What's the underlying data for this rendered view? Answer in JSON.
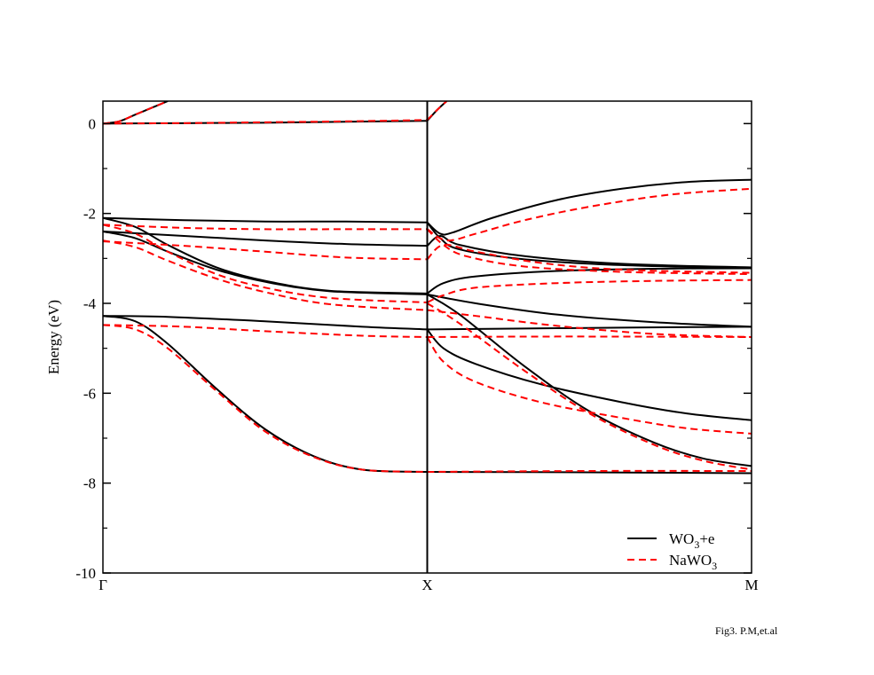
{
  "chart_data": {
    "type": "line",
    "title": "",
    "xlabel": "",
    "ylabel": "Energy (eV)",
    "ylim": [
      -10,
      0.5
    ],
    "xlim": [
      0,
      2
    ],
    "grid": false,
    "legend_position": "bottom-right",
    "x_tick_labels": [
      {
        "x": 0,
        "label": "Γ"
      },
      {
        "x": 1,
        "label": "X"
      },
      {
        "x": 2,
        "label": "M"
      }
    ],
    "y_ticks": [
      0,
      -2,
      -4,
      -6,
      -8,
      -10
    ],
    "y_tick_labels": [
      "0",
      "-2",
      "-4",
      "-6",
      "-8",
      "-10"
    ],
    "y_minor_ticks": [
      -1,
      -3,
      -5,
      -7,
      -9
    ],
    "vertical_line_at": 1,
    "colors": {
      "wo3e": "#000000",
      "nawo3": "#ff0000"
    },
    "series": [
      {
        "name": "WO3+e",
        "legend_main": "WO",
        "legend_sub": "3",
        "legend_tail": "+e",
        "style": "solid",
        "color": "#000000",
        "bands": [
          [
            [
              0,
              0
            ],
            [
              0.05,
              0.05
            ],
            [
              0.1,
              0.2
            ],
            [
              0.15,
              0.35
            ],
            [
              0.2,
              0.5
            ]
          ],
          [
            [
              0,
              0
            ],
            [
              0.25,
              0.01
            ],
            [
              0.5,
              0.02
            ],
            [
              0.75,
              0.04
            ],
            [
              1,
              0.06
            ]
          ],
          [
            [
              1,
              0.06
            ],
            [
              1.03,
              0.3
            ],
            [
              1.06,
              0.5
            ]
          ],
          [
            [
              0,
              -2.1
            ],
            [
              0.25,
              -2.15
            ],
            [
              0.5,
              -2.18
            ],
            [
              0.75,
              -2.18
            ],
            [
              1,
              -2.2
            ]
          ],
          [
            [
              0,
              -2.1
            ],
            [
              0.1,
              -2.3
            ],
            [
              0.2,
              -2.7
            ],
            [
              0.35,
              -3.2
            ],
            [
              0.5,
              -3.5
            ],
            [
              0.7,
              -3.72
            ],
            [
              1,
              -3.78
            ]
          ],
          [
            [
              0,
              -2.4
            ],
            [
              0.1,
              -2.55
            ],
            [
              0.2,
              -2.85
            ],
            [
              0.35,
              -3.25
            ],
            [
              0.5,
              -3.52
            ],
            [
              0.7,
              -3.73
            ],
            [
              1,
              -3.8
            ]
          ],
          [
            [
              0,
              -2.4
            ],
            [
              0.25,
              -2.5
            ],
            [
              0.5,
              -2.6
            ],
            [
              0.75,
              -2.68
            ],
            [
              1,
              -2.72
            ]
          ],
          [
            [
              0,
              -4.28
            ],
            [
              0.2,
              -4.3
            ],
            [
              0.5,
              -4.4
            ],
            [
              0.8,
              -4.52
            ],
            [
              1,
              -4.58
            ]
          ],
          [
            [
              0,
              -4.28
            ],
            [
              0.1,
              -4.4
            ],
            [
              0.2,
              -4.9
            ],
            [
              0.35,
              -5.9
            ],
            [
              0.5,
              -6.8
            ],
            [
              0.65,
              -7.4
            ],
            [
              0.8,
              -7.7
            ],
            [
              1,
              -7.75
            ]
          ],
          [
            [
              1,
              -2.2
            ],
            [
              1.04,
              -2.45
            ],
            [
              1.08,
              -2.42
            ],
            [
              1.2,
              -2.1
            ],
            [
              1.4,
              -1.7
            ],
            [
              1.6,
              -1.45
            ],
            [
              1.8,
              -1.3
            ],
            [
              2,
              -1.25
            ]
          ],
          [
            [
              1,
              -2.72
            ],
            [
              1.04,
              -2.5
            ],
            [
              1.1,
              -2.7
            ],
            [
              1.3,
              -2.95
            ],
            [
              1.6,
              -3.12
            ],
            [
              2,
              -3.2
            ]
          ],
          [
            [
              1,
              -2.2
            ],
            [
              1.04,
              -2.55
            ],
            [
              1.1,
              -2.8
            ],
            [
              1.3,
              -3.02
            ],
            [
              1.6,
              -3.15
            ],
            [
              2,
              -3.22
            ]
          ],
          [
            [
              1,
              -3.78
            ],
            [
              1.05,
              -3.55
            ],
            [
              1.15,
              -3.4
            ],
            [
              1.4,
              -3.28
            ],
            [
              1.7,
              -3.23
            ],
            [
              2,
              -3.22
            ]
          ],
          [
            [
              1,
              -3.8
            ],
            [
              1.15,
              -4.0
            ],
            [
              1.4,
              -4.25
            ],
            [
              1.7,
              -4.42
            ],
            [
              2,
              -4.52
            ]
          ],
          [
            [
              1,
              -4.58
            ],
            [
              1.3,
              -4.56
            ],
            [
              1.6,
              -4.54
            ],
            [
              2,
              -4.52
            ]
          ],
          [
            [
              1,
              -4.58
            ],
            [
              1.05,
              -5.0
            ],
            [
              1.15,
              -5.35
            ],
            [
              1.35,
              -5.8
            ],
            [
              1.6,
              -6.2
            ],
            [
              1.8,
              -6.45
            ],
            [
              2,
              -6.6
            ]
          ],
          [
            [
              1,
              -3.8
            ],
            [
              1.1,
              -4.25
            ],
            [
              1.3,
              -5.4
            ],
            [
              1.5,
              -6.4
            ],
            [
              1.7,
              -7.1
            ],
            [
              1.85,
              -7.45
            ],
            [
              2,
              -7.62
            ]
          ],
          [
            [
              1,
              -7.75
            ],
            [
              1.5,
              -7.76
            ],
            [
              2,
              -7.78
            ]
          ]
        ]
      },
      {
        "name": "NaWO3",
        "legend_main": "NaWO",
        "legend_sub": "3",
        "legend_tail": "",
        "style": "dashed",
        "color": "#ff0000",
        "bands": [
          [
            [
              0,
              0
            ],
            [
              0.05,
              0.05
            ],
            [
              0.1,
              0.2
            ],
            [
              0.15,
              0.35
            ],
            [
              0.2,
              0.5
            ]
          ],
          [
            [
              0,
              0
            ],
            [
              0.25,
              0.01
            ],
            [
              0.5,
              0.03
            ],
            [
              0.75,
              0.05
            ],
            [
              1,
              0.08
            ]
          ],
          [
            [
              1,
              0.08
            ],
            [
              1.03,
              0.3
            ],
            [
              1.06,
              0.5
            ]
          ],
          [
            [
              0,
              -2.25
            ],
            [
              0.25,
              -2.32
            ],
            [
              0.5,
              -2.35
            ],
            [
              0.75,
              -2.35
            ],
            [
              1,
              -2.35
            ]
          ],
          [
            [
              0,
              -2.25
            ],
            [
              0.1,
              -2.45
            ],
            [
              0.2,
              -2.85
            ],
            [
              0.35,
              -3.35
            ],
            [
              0.5,
              -3.65
            ],
            [
              0.7,
              -3.88
            ],
            [
              1,
              -3.98
            ]
          ],
          [
            [
              0,
              -2.6
            ],
            [
              0.1,
              -2.75
            ],
            [
              0.2,
              -3.05
            ],
            [
              0.35,
              -3.45
            ],
            [
              0.5,
              -3.75
            ],
            [
              0.7,
              -4.02
            ],
            [
              1,
              -4.15
            ]
          ],
          [
            [
              0,
              -2.62
            ],
            [
              0.25,
              -2.72
            ],
            [
              0.5,
              -2.85
            ],
            [
              0.75,
              -2.98
            ],
            [
              1,
              -3.02
            ]
          ],
          [
            [
              0,
              -4.48
            ],
            [
              0.25,
              -4.52
            ],
            [
              0.5,
              -4.62
            ],
            [
              0.8,
              -4.72
            ],
            [
              1,
              -4.75
            ]
          ],
          [
            [
              0,
              -4.48
            ],
            [
              0.1,
              -4.58
            ],
            [
              0.2,
              -5.0
            ],
            [
              0.35,
              -5.95
            ],
            [
              0.5,
              -6.85
            ],
            [
              0.65,
              -7.42
            ],
            [
              0.8,
              -7.7
            ],
            [
              1,
              -7.75
            ]
          ],
          [
            [
              1,
              -2.35
            ],
            [
              1.06,
              -2.6
            ],
            [
              1.15,
              -2.45
            ],
            [
              1.3,
              -2.15
            ],
            [
              1.5,
              -1.85
            ],
            [
              1.75,
              -1.58
            ],
            [
              2,
              -1.45
            ]
          ],
          [
            [
              1,
              -3.02
            ],
            [
              1.05,
              -2.7
            ],
            [
              1.15,
              -2.85
            ],
            [
              1.35,
              -3.1
            ],
            [
              1.6,
              -3.25
            ],
            [
              2,
              -3.32
            ]
          ],
          [
            [
              1,
              -2.35
            ],
            [
              1.05,
              -2.7
            ],
            [
              1.12,
              -2.95
            ],
            [
              1.3,
              -3.18
            ],
            [
              1.6,
              -3.3
            ],
            [
              2,
              -3.35
            ]
          ],
          [
            [
              1,
              -3.98
            ],
            [
              1.05,
              -3.82
            ],
            [
              1.15,
              -3.65
            ],
            [
              1.4,
              -3.55
            ],
            [
              1.7,
              -3.5
            ],
            [
              2,
              -3.48
            ]
          ],
          [
            [
              1,
              -4.15
            ],
            [
              1.15,
              -4.28
            ],
            [
              1.4,
              -4.5
            ],
            [
              1.7,
              -4.68
            ],
            [
              2,
              -4.75
            ]
          ],
          [
            [
              1,
              -4.75
            ],
            [
              1.3,
              -4.74
            ],
            [
              1.6,
              -4.74
            ],
            [
              2,
              -4.75
            ]
          ],
          [
            [
              1,
              -4.75
            ],
            [
              1.05,
              -5.3
            ],
            [
              1.15,
              -5.75
            ],
            [
              1.35,
              -6.2
            ],
            [
              1.6,
              -6.55
            ],
            [
              1.8,
              -6.78
            ],
            [
              2,
              -6.9
            ]
          ],
          [
            [
              1,
              -4.0
            ],
            [
              1.1,
              -4.45
            ],
            [
              1.3,
              -5.5
            ],
            [
              1.5,
              -6.45
            ],
            [
              1.7,
              -7.15
            ],
            [
              1.85,
              -7.5
            ],
            [
              2,
              -7.7
            ]
          ],
          [
            [
              1,
              -7.75
            ],
            [
              1.5,
              -7.73
            ],
            [
              2,
              -7.73
            ]
          ]
        ]
      }
    ]
  },
  "caption": "Fig3. P.M,et.al"
}
